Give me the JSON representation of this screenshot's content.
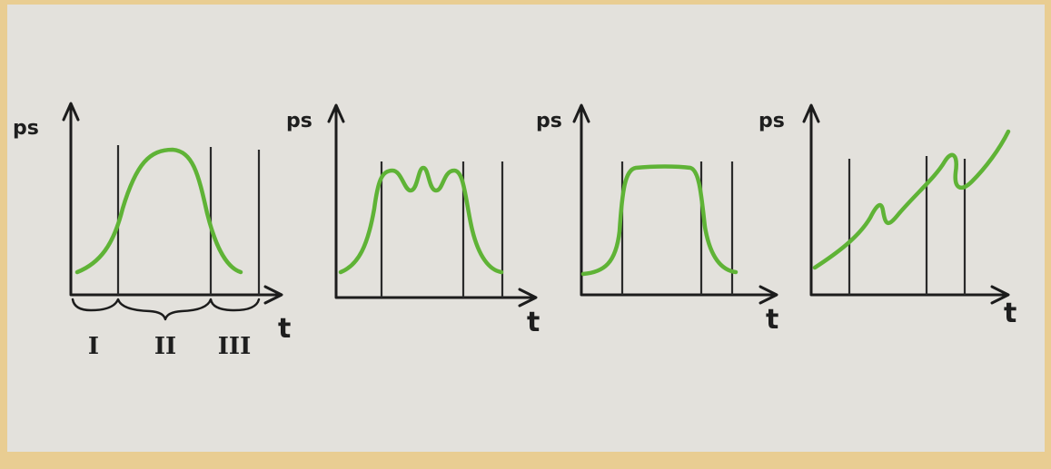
{
  "panels": [
    {
      "y_label": "ps",
      "x_label": "t",
      "phases": [
        "I",
        "II",
        "III"
      ]
    },
    {
      "y_label": "ps",
      "x_label": "t"
    },
    {
      "y_label": "ps",
      "x_label": "t"
    },
    {
      "y_label": "ps",
      "x_label": "t"
    }
  ]
}
